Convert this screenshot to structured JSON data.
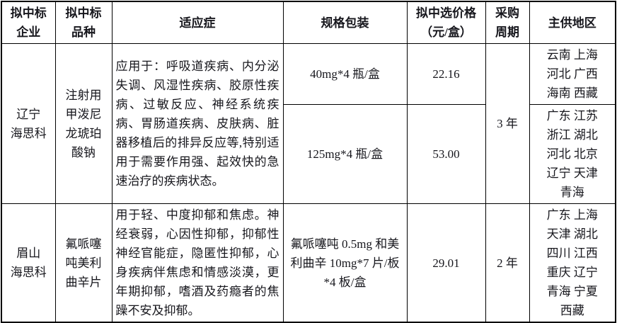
{
  "table": {
    "header": {
      "company": "拟中标\n企业",
      "product": "拟中标\n品种",
      "indication": "适应症",
      "spec": "规格包装",
      "price": "拟中选价格\n（元/盒）",
      "cycle": "采购\n周期",
      "region": "主供地区"
    },
    "rows": [
      {
        "company": "辽宁\n海思科",
        "product": "注射用\n甲泼尼\n龙琥珀\n酸钠",
        "indication": "应用于：呼吸道疾病、内分泌失调、风湿性疾病、胶原性疾病、过敏反应、神经系统疾病、胃肠道疾病、皮肤病、脏器移植后的排异反应等,特别适用于需要作用强、起效快的急速治疗的疾病状态。",
        "cycle": "3 年",
        "subrows": [
          {
            "spec": "40mg*4 瓶/盒",
            "price": "22.16",
            "regions": "云南 上海\n河北 广西\n海南 西藏"
          },
          {
            "spec": "125mg*4 瓶/盒",
            "price": "53.00",
            "regions": "广东 江苏\n浙江 湖北\n河北 北京\n辽宁 天津\n青海"
          }
        ]
      },
      {
        "company": "眉山\n海思科",
        "product": "氟哌噻\n吨美利\n曲辛片",
        "indication": "用于轻、中度抑郁和焦虑。神经衰弱，心因性抑郁，抑郁性神经官能症，隐匿性抑郁，心身疾病伴焦虑和情感淡漠，更年期抑郁，嗜酒及药瘾者的焦躁不安及抑郁。",
        "spec": "氟哌噻吨 0.5mg 和美\n利曲辛 10mg*7 片/板\n*4 板/盒",
        "price": "29.01",
        "cycle": "2 年",
        "regions": "广东 上海\n天津 湖北\n四川 江西\n重庆 辽宁\n青海 宁夏\n西藏"
      }
    ]
  }
}
